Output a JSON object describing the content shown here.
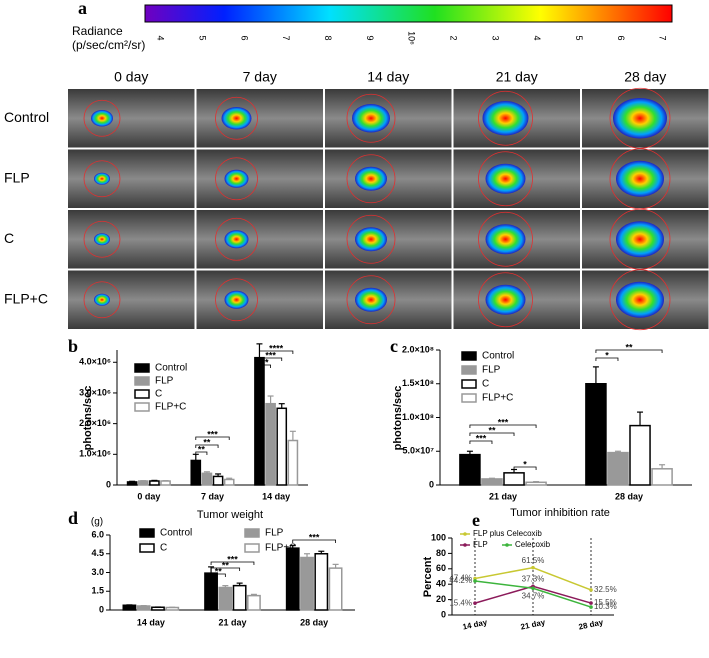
{
  "panel_a": {
    "label": "a",
    "colorbar_title": [
      "Radiance",
      "(p/sec/cm²/sr)"
    ],
    "colorbar_ticks": [
      "4",
      "5",
      "6",
      "7",
      "8",
      "9",
      "10⁶",
      "2",
      "3",
      "4",
      "5",
      "6",
      "7"
    ],
    "columns": [
      "0 day",
      "7 day",
      "14 day",
      "21 day",
      "28 day"
    ],
    "rows": [
      "Control",
      "FLP",
      "C",
      "FLP+C"
    ]
  },
  "chart_data": [
    {
      "type": "bar",
      "panel": "b",
      "ylabel": "photons/sec",
      "categories": [
        "0 day",
        "7 day",
        "14 day"
      ],
      "ylim": [
        0,
        4400000
      ],
      "yticks": [
        0,
        {
          "value": 1000000,
          "label": "1.0×10⁶"
        },
        {
          "value": 2000000,
          "label": "2.0×10⁶"
        },
        {
          "value": 3000000,
          "label": "3.0×10⁶"
        },
        {
          "value": 4000000,
          "label": "4.0×10⁶"
        }
      ],
      "series": [
        {
          "name": "Control",
          "color": "#000000",
          "edge": "#000000",
          "values": [
            100000,
            800000,
            4150000
          ],
          "errors": [
            20000,
            200000,
            450000
          ]
        },
        {
          "name": "FLP",
          "color": "#999999",
          "edge": "#999999",
          "values": [
            130000,
            380000,
            2650000
          ],
          "errors": [
            10000,
            50000,
            250000
          ]
        },
        {
          "name": "C",
          "color": "#ffffff",
          "edge": "#000000",
          "values": [
            130000,
            280000,
            2500000
          ],
          "errors": [
            20000,
            80000,
            150000
          ]
        },
        {
          "name": "FLP+C",
          "color": "#ffffff",
          "edge": "#999999",
          "values": [
            130000,
            180000,
            1450000
          ],
          "errors": [
            10000,
            40000,
            300000
          ]
        }
      ],
      "annotations": [
        "**",
        "**",
        "***",
        "**",
        "***",
        "****"
      ]
    },
    {
      "type": "bar",
      "panel": "c",
      "ylabel": "photons/sec",
      "categories": [
        "21 day",
        "28 day"
      ],
      "ylim": [
        0,
        200000000
      ],
      "yticks": [
        0,
        {
          "value": 50000000,
          "label": "5.0×10⁷"
        },
        {
          "value": 100000000,
          "label": "1.0×10⁸"
        },
        {
          "value": 150000000,
          "label": "1.5×10⁸"
        },
        {
          "value": 200000000,
          "label": "2.0×10⁸"
        }
      ],
      "series": [
        {
          "name": "Control",
          "color": "#000000",
          "edge": "#000000",
          "values": [
            45000000,
            150000000
          ],
          "errors": [
            5000000,
            25000000
          ]
        },
        {
          "name": "FLP",
          "color": "#999999",
          "edge": "#999999",
          "values": [
            9000000,
            48000000
          ],
          "errors": [
            1000000,
            2000000
          ]
        },
        {
          "name": "C",
          "color": "#ffffff",
          "edge": "#000000",
          "values": [
            18000000,
            88000000
          ],
          "errors": [
            5000000,
            20000000
          ]
        },
        {
          "name": "FLP+C",
          "color": "#ffffff",
          "edge": "#999999",
          "values": [
            4000000,
            24000000
          ],
          "errors": [
            1000000,
            6000000
          ]
        }
      ],
      "annotations": [
        "***",
        "**",
        "***",
        "*",
        "*",
        "**"
      ]
    },
    {
      "type": "bar",
      "panel": "d",
      "title": "Tumor weight",
      "ylabel": "(g)",
      "categories": [
        "14 day",
        "21 day",
        "28 day"
      ],
      "ylim": [
        0,
        6
      ],
      "yticks": [
        0,
        1.5,
        {
          "value": 3,
          "label": "3.0"
        },
        4.5,
        {
          "value": 6,
          "label": "6.0"
        }
      ],
      "series": [
        {
          "name": "Control",
          "color": "#000000",
          "edge": "#000000",
          "values": [
            0.38,
            2.95,
            4.95
          ],
          "errors": [
            0.03,
            0.5,
            0.2
          ]
        },
        {
          "name": "FLP",
          "color": "#999999",
          "edge": "#999999",
          "values": [
            0.32,
            1.8,
            4.2
          ],
          "errors": [
            0.03,
            0.15,
            0.3
          ]
        },
        {
          "name": "C",
          "color": "#ffffff",
          "edge": "#000000",
          "values": [
            0.22,
            1.95,
            4.5
          ],
          "errors": [
            0.02,
            0.2,
            0.2
          ]
        },
        {
          "name": "FLP+C",
          "color": "#ffffff",
          "edge": "#999999",
          "values": [
            0.2,
            1.15,
            3.35
          ],
          "errors": [
            0.02,
            0.1,
            0.3
          ]
        }
      ],
      "annotations": [
        "**",
        "**",
        "***",
        "***"
      ]
    },
    {
      "type": "line",
      "panel": "e",
      "title": "Tumor inhibition rate",
      "ylabel": "Percent",
      "categories": [
        "14 day",
        "21 day",
        "28 day"
      ],
      "ylim": [
        0,
        100
      ],
      "yticks": [
        0,
        20,
        40,
        60,
        80,
        100
      ],
      "series": [
        {
          "name": "FLP plus Celecoxib",
          "color": "#c8c832",
          "values": [
            47.4,
            61.5,
            32.5
          ],
          "value_labels": [
            "47.4%",
            "61.5%",
            "32.5%"
          ]
        },
        {
          "name": "FLP",
          "color": "#8b1a5a",
          "values": [
            15.4,
            37.3,
            15.5
          ],
          "value_labels": [
            "15.4%",
            "37.3%",
            "15.5%"
          ]
        },
        {
          "name": "Celecoxib",
          "color": "#3cb43c",
          "values": [
            44.2,
            34.7,
            10.3
          ],
          "value_labels": [
            "44.2%",
            "34.7%",
            "10.3%"
          ]
        }
      ]
    }
  ]
}
